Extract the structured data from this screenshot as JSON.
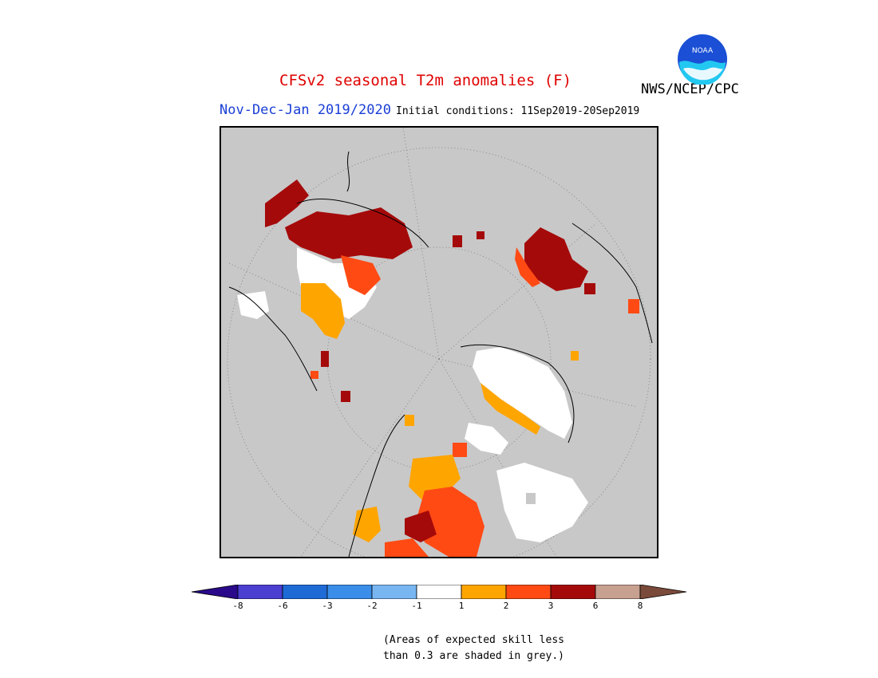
{
  "title": "CFSv2 seasonal T2m anomalies (F)",
  "agency": "NWS/NCEP/CPC",
  "logo_text": "NOAA",
  "period": "Nov-Dec-Jan 2019/2020",
  "initial_conditions": "Initial conditions: 11Sep2019-20Sep2019",
  "colors": {
    "title": "#e00000",
    "period": "#1a3fd6",
    "no_skill_grey": "#c8c8c8",
    "scale": [
      "#2a0a8a",
      "#4a3fd0",
      "#1f6bd6",
      "#3a8de8",
      "#78b6f2",
      "#ffffff",
      "#ffa500",
      "#ff4a14",
      "#a50a0a",
      "#c8a090",
      "#7a4a3a"
    ]
  },
  "colorbar": {
    "ticks": [
      "-8",
      "-6",
      "-3",
      "-2",
      "-1",
      "1",
      "2",
      "3",
      "6",
      "8"
    ]
  },
  "note": {
    "line1": "(Areas of expected skill less",
    "line2": "than 0.3 are shaded in grey.)"
  }
}
